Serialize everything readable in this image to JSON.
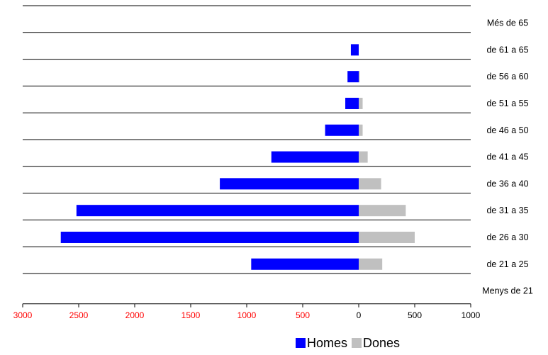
{
  "chart_data": {
    "type": "bar",
    "orientation": "horizontal",
    "stacked": "diverging",
    "categories": [
      "Menys de 21",
      "de 21 a 25",
      "de 26 a 30",
      "de 31 a 35",
      "de 36 a 40",
      "de 41 a 45",
      "de 46 a 50",
      "de 51 a 55",
      "de 56 a 60",
      "de 61 a 65",
      "Més de 65"
    ],
    "series": [
      {
        "name": "Homes",
        "color": "#0000ff",
        "values": [
          0,
          -960,
          -2660,
          -2520,
          -1240,
          -780,
          -300,
          -120,
          -100,
          -70,
          0
        ]
      },
      {
        "name": "Dones",
        "color": "#c0c0c0",
        "values": [
          0,
          210,
          500,
          420,
          200,
          80,
          35,
          35,
          10,
          0,
          0
        ]
      }
    ],
    "xlim": [
      -3000,
      1000
    ],
    "xticks": [
      -3000,
      -2500,
      -2000,
      -1500,
      -1000,
      -500,
      0,
      500,
      1000
    ],
    "xtick_labels": [
      "3000",
      "2500",
      "2000",
      "1500",
      "1000",
      "500",
      "0",
      "500",
      "1000"
    ],
    "negative_tick_color": "#ff0000",
    "positive_tick_color": "#000000",
    "grid": "horizontal separators",
    "legend_position": "bottom-right",
    "title": "",
    "xlabel": "",
    "ylabel": ""
  }
}
